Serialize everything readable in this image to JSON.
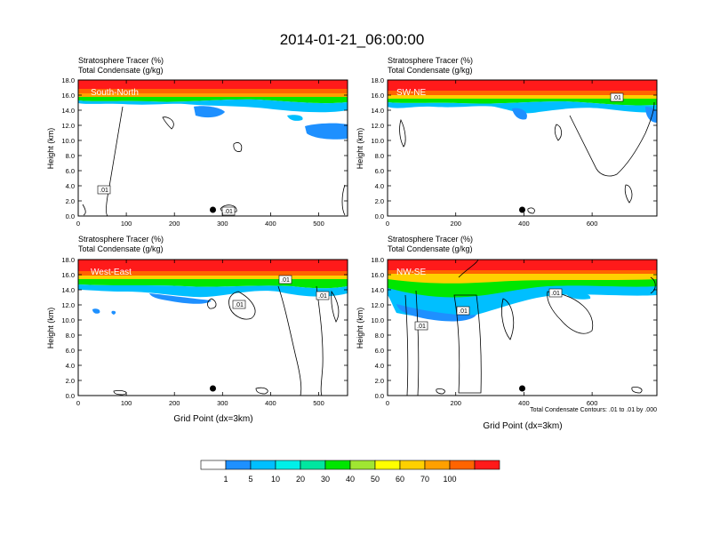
{
  "figure": {
    "title": "2014-01-21_06:00:00",
    "contour_note": "Total Condensate Contours: .01 to .01 by .000"
  },
  "colors": {
    "levels": [
      "#ffffff",
      "#1e90ff",
      "#00bfff",
      "#00f0e8",
      "#00e6a0",
      "#00e600",
      "#a0e632",
      "#ffff00",
      "#ffd000",
      "#ffa000",
      "#ff6400",
      "#ff1a1a"
    ],
    "axis": "#000000",
    "contour": "#000000"
  },
  "chart_data": [
    {
      "type": "heatmap",
      "panel_label": "South-North",
      "subtitle_1": "Stratosphere Tracer   (%)",
      "subtitle_2": "Total Condensate   (g/kg)",
      "ylabel": "Height (km)",
      "xlabel": "",
      "xlim": [
        0,
        560
      ],
      "ylim": [
        0,
        18
      ],
      "x_ticks": [
        0,
        100,
        200,
        300,
        400,
        500
      ],
      "y_ticks": [
        "0.0",
        "2.0",
        "4.0",
        "6.0",
        "8.0",
        "10.0",
        "12.0",
        "14.0",
        "16.0",
        "18.0"
      ],
      "tracer_bottom_km": 15.5,
      "contour_labels": [
        ".01",
        ".01"
      ],
      "marker_x": 280
    },
    {
      "type": "heatmap",
      "panel_label": "SW-NE",
      "subtitle_1": "Stratosphere Tracer   (%)",
      "subtitle_2": "Total Condensate   (g/kg)",
      "ylabel": "Height (km)",
      "xlabel": "",
      "xlim": [
        0,
        790
      ],
      "ylim": [
        0,
        18
      ],
      "x_ticks": [
        0,
        200,
        400,
        600
      ],
      "y_ticks": [
        "0.0",
        "2.0",
        "4.0",
        "6.0",
        "8.0",
        "10.0",
        "12.0",
        "14.0",
        "16.0",
        "18.0"
      ],
      "tracer_bottom_km": 15.3,
      "contour_labels": [
        ".01"
      ],
      "marker_x": 395
    },
    {
      "type": "heatmap",
      "panel_label": "West-East",
      "subtitle_1": "Stratosphere Tracer   (%)",
      "subtitle_2": "Total Condensate   (g/kg)",
      "ylabel": "Height (km)",
      "xlabel": "Grid Point (dx=3km)",
      "xlim": [
        0,
        560
      ],
      "ylim": [
        0,
        18
      ],
      "x_ticks": [
        0,
        100,
        200,
        300,
        400,
        500
      ],
      "y_ticks": [
        "0.0",
        "2.0",
        "4.0",
        "6.0",
        "8.0",
        "10.0",
        "12.0",
        "14.0",
        "16.0",
        "18.0"
      ],
      "tracer_bottom_km": 15.0,
      "contour_labels": [
        ".01",
        ".01",
        ".01"
      ],
      "marker_x": 280
    },
    {
      "type": "heatmap",
      "panel_label": "NW-SE",
      "subtitle_1": "Stratosphere Tracer   (%)",
      "subtitle_2": "Total Condensate   (g/kg)",
      "ylabel": "Height (km)",
      "xlabel": "Grid Point (dx=3km)",
      "xlim": [
        0,
        790
      ],
      "ylim": [
        0,
        18
      ],
      "x_ticks": [
        0,
        200,
        400,
        600
      ],
      "y_ticks": [
        "0.0",
        "2.0",
        "4.0",
        "6.0",
        "8.0",
        "10.0",
        "12.0",
        "14.0",
        "16.0",
        "18.0"
      ],
      "tracer_bottom_km": 14.0,
      "contour_labels": [
        ".01",
        ".01",
        ".01"
      ],
      "marker_x": 395
    }
  ],
  "colorbar": {
    "labels": [
      "1",
      "5",
      "10",
      "20",
      "30",
      "40",
      "50",
      "60",
      "70",
      "100"
    ]
  }
}
